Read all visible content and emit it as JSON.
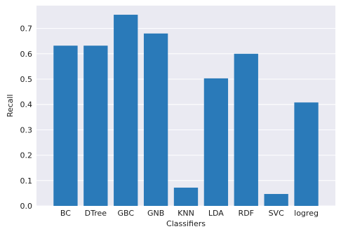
{
  "chart_data": {
    "type": "bar",
    "title": "",
    "xlabel": "Classifiers",
    "ylabel": "Recall",
    "categories": [
      "BC",
      "DTree",
      "GBC",
      "GNB",
      "KNN",
      "LDA",
      "RDF",
      "SVC",
      "logreg"
    ],
    "values": [
      0.632,
      0.632,
      0.754,
      0.68,
      0.072,
      0.503,
      0.6,
      0.047,
      0.408
    ],
    "ylim": [
      0,
      0.79
    ],
    "yticks": [
      "0.0",
      "0.1",
      "0.2",
      "0.3",
      "0.4",
      "0.5",
      "0.6",
      "0.7"
    ],
    "grid": true,
    "style": "seaborn",
    "colors": {
      "bar": "#2a7ab9",
      "plot_background": "#eaeaf2",
      "grid": "#ffffff"
    }
  }
}
